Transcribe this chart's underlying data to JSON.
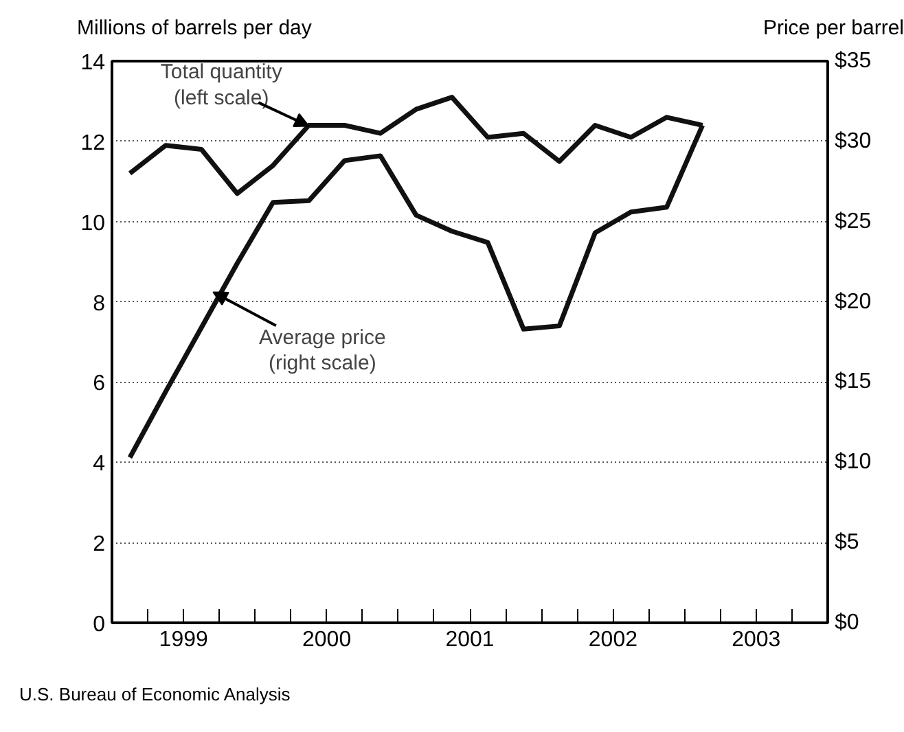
{
  "chart_data": {
    "type": "line",
    "ylabel": "Millions of barrels per day",
    "y2label": "Price per barrel",
    "x": [
      1999.125,
      1999.375,
      1999.625,
      1999.875,
      2000.125,
      2000.375,
      2000.625,
      2000.875,
      2001.125,
      2001.375,
      2001.625,
      2001.875,
      2002.125,
      2002.375,
      2002.625,
      2002.875,
      2003.125
    ],
    "series": [
      {
        "name": null,
        "color": "#111111",
        "values": [
          11.2,
          11.9,
          11.8,
          10.7,
          11.4,
          12.4,
          12.4,
          12.2,
          12.8,
          13.1,
          12.1,
          12.2,
          11.5,
          12.4,
          12.1,
          12.6,
          12.4
        ]
      },
      {
        "name": null,
        "color": "#111111",
        "axis": "y2",
        "values": [
          10.3,
          14.4,
          18.4,
          22.4,
          26.2,
          26.3,
          28.8,
          29.1,
          25.4,
          24.4,
          23.7,
          18.3,
          18.5,
          24.3,
          25.6,
          25.9,
          31.0
        ]
      }
    ],
    "xlim": [
      1999,
      2004
    ],
    "xticks": [
      {
        "value": 1999.25,
        "label": null
      },
      {
        "value": 1999.5,
        "label": "1999"
      },
      {
        "value": 1999.75,
        "label": null
      },
      {
        "value": 2000,
        "label": null
      },
      {
        "value": 2000.25,
        "label": null
      },
      {
        "value": 2000.5,
        "label": "2000"
      },
      {
        "value": 2000.75,
        "label": null
      },
      {
        "value": 2001,
        "label": null
      },
      {
        "value": 2001.25,
        "label": null
      },
      {
        "value": 2001.5,
        "label": "2001"
      },
      {
        "value": 2001.75,
        "label": null
      },
      {
        "value": 2002,
        "label": null
      },
      {
        "value": 2002.25,
        "label": null
      },
      {
        "value": 2002.5,
        "label": "2002"
      },
      {
        "value": 2002.75,
        "label": null
      },
      {
        "value": 2003,
        "label": null
      },
      {
        "value": 2003.25,
        "label": null
      },
      {
        "value": 2003.5,
        "label": "2003"
      },
      {
        "value": 2003.75,
        "label": null
      }
    ],
    "ylim": [
      0,
      14
    ],
    "yticks": [
      0,
      2,
      4,
      6,
      8,
      10,
      12,
      14
    ],
    "y2lim": [
      0,
      35
    ],
    "y2ticks": [
      {
        "value": 0,
        "label": "$0"
      },
      {
        "value": 5,
        "label": "$5"
      },
      {
        "value": 10,
        "label": "$10"
      },
      {
        "value": 15,
        "label": "$15"
      },
      {
        "value": 20,
        "label": "$20"
      },
      {
        "value": 25,
        "label": "$25"
      },
      {
        "value": 30,
        "label": "$30"
      },
      {
        "value": 35,
        "label": "$35"
      }
    ],
    "grid": "y",
    "marker": "none",
    "line_style": "solid",
    "annotations": [
      {
        "text": "Total quantity\n(left scale)",
        "x": 2000.34,
        "y": 12.44
      },
      {
        "text": "Average price\n(right scale)",
        "x": 1999.75,
        "y": 8.16
      },
      "U.S. Bureau of Economic Analysis"
    ]
  }
}
